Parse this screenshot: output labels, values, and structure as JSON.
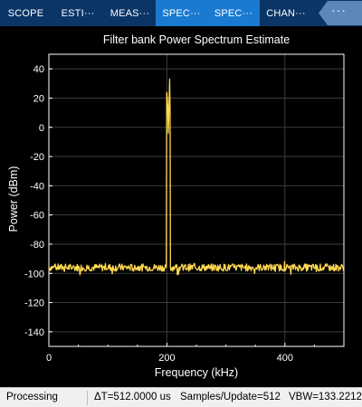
{
  "tabs": [
    {
      "label": "SCOPE",
      "active": false
    },
    {
      "label": "ESTI···",
      "active": false
    },
    {
      "label": "MEAS···",
      "active": false
    },
    {
      "label": "SPEC···",
      "active": true
    },
    {
      "label": "SPEC···",
      "active": true
    },
    {
      "label": "CHAN···",
      "active": false
    }
  ],
  "more_label": "···",
  "chart_data": {
    "type": "line",
    "title": "Filter bank Power Spectrum Estimate",
    "xlabel": "Frequency (kHz)",
    "ylabel": "Power (dBm)",
    "xlim": [
      0,
      500
    ],
    "ylim": [
      -150,
      50
    ],
    "xticks": [
      0,
      200,
      400
    ],
    "yticks": [
      40,
      20,
      0,
      -20,
      -40,
      -60,
      -80,
      -100,
      -120,
      -140
    ],
    "grid": true,
    "series": [
      {
        "color": "#ffd950",
        "noise_floor_dbm": -96,
        "peaks": [
          {
            "frequency_khz": 200,
            "power_dbm": 24
          },
          {
            "frequency_khz": 205,
            "power_dbm": 33
          }
        ]
      }
    ]
  },
  "status": {
    "state": "Processing",
    "delta_t": "ΔT=512.0000 us",
    "samples": "Samples/Update=512",
    "vbw": "VBW=133.2212"
  },
  "colors": {
    "plot_background": "#000000",
    "axis_color": "#ffffff",
    "grid_color": "#3c3c3c",
    "trace_color": "#ffd950",
    "tab_background": "#0a3566",
    "tab_active": "#1a7ad1"
  }
}
